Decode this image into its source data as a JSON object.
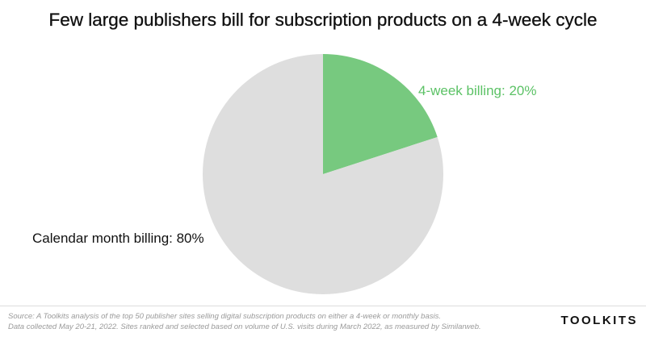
{
  "title": "Few large publishers bill for subscription products on a 4-week cycle",
  "chart_data": {
    "type": "pie",
    "title": "Few large publishers bill for subscription products on a 4-week cycle",
    "slices": [
      {
        "label": "4-week billing: 20%",
        "value": 20,
        "color": "#77c97f",
        "label_color": "#5cc266"
      },
      {
        "label": "Calendar month billing: 80%",
        "value": 80,
        "color": "#dedede",
        "label_color": "#111111"
      }
    ]
  },
  "footer": {
    "source_line1": "Source: A Toolkits analysis of the top 50 publisher sites selling digital subscription products on either a 4-week or monthly basis.",
    "source_line2": "Data collected May 20-21, 2022. Sites ranked and selected based on volume of U.S. visits during March 2022, as measured by Similarweb."
  },
  "brand": "TOOLKITS"
}
